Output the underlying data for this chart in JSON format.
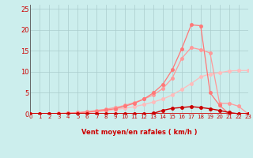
{
  "xlabel": "Vent moyen/en rafales ( km/h )",
  "xlim": [
    0,
    23
  ],
  "ylim": [
    0,
    26
  ],
  "yticks": [
    0,
    5,
    10,
    15,
    20,
    25
  ],
  "xticks": [
    0,
    1,
    2,
    3,
    4,
    5,
    6,
    7,
    8,
    9,
    10,
    11,
    12,
    13,
    14,
    15,
    16,
    17,
    18,
    19,
    20,
    21,
    22,
    23
  ],
  "background_color": "#cceeed",
  "grid_color": "#aacccc",
  "line_A_x": [
    0,
    1,
    2,
    3,
    4,
    5,
    6,
    7,
    8,
    9,
    10,
    11,
    12,
    13,
    14,
    15,
    16,
    17,
    18,
    19,
    20,
    21,
    22,
    23
  ],
  "line_A_y": [
    0,
    0,
    0,
    0,
    0.1,
    0.2,
    0.3,
    0.5,
    0.7,
    1.0,
    1.3,
    1.7,
    2.2,
    2.8,
    3.5,
    4.5,
    5.8,
    7.2,
    8.8,
    9.5,
    9.8,
    10.2,
    10.3,
    10.3
  ],
  "line_B_x": [
    0,
    1,
    2,
    3,
    4,
    5,
    6,
    7,
    8,
    9,
    10,
    11,
    12,
    13,
    14,
    15,
    16,
    17,
    18,
    19,
    20,
    21,
    22,
    23
  ],
  "line_B_y": [
    0,
    0,
    0,
    0.1,
    0.2,
    0.3,
    0.5,
    0.8,
    1.1,
    1.5,
    2.0,
    2.7,
    3.5,
    4.5,
    6.0,
    8.5,
    13.2,
    15.8,
    15.3,
    14.5,
    2.5,
    2.5,
    1.8,
    0
  ],
  "line_C_x": [
    0,
    1,
    2,
    3,
    4,
    5,
    6,
    7,
    8,
    9,
    10,
    11,
    12,
    13,
    14,
    15,
    16,
    17,
    18,
    19,
    20,
    21,
    22,
    23
  ],
  "line_C_y": [
    0,
    0,
    0,
    0,
    0.1,
    0.2,
    0.4,
    0.6,
    0.9,
    1.2,
    1.8,
    2.5,
    3.5,
    5.0,
    7.0,
    10.5,
    15.5,
    21.2,
    21.0,
    5.0,
    2.0,
    0,
    0,
    0
  ],
  "line_D_x": [
    0,
    1,
    2,
    3,
    4,
    5,
    6,
    7,
    8,
    9,
    10,
    11,
    12,
    13,
    14,
    15,
    16,
    17,
    18,
    19,
    20,
    21,
    22,
    23
  ],
  "line_D_y": [
    0,
    0,
    0,
    0,
    0,
    0,
    0,
    0,
    0,
    0,
    0,
    0,
    0,
    0.1,
    0.8,
    1.3,
    1.5,
    1.7,
    1.5,
    1.2,
    0.8,
    0.3,
    0,
    0
  ],
  "color_A": "#ffbbbb",
  "color_B": "#ff9999",
  "color_C": "#ff7777",
  "color_D": "#cc0000",
  "lw": 0.9,
  "ms": 2.5
}
